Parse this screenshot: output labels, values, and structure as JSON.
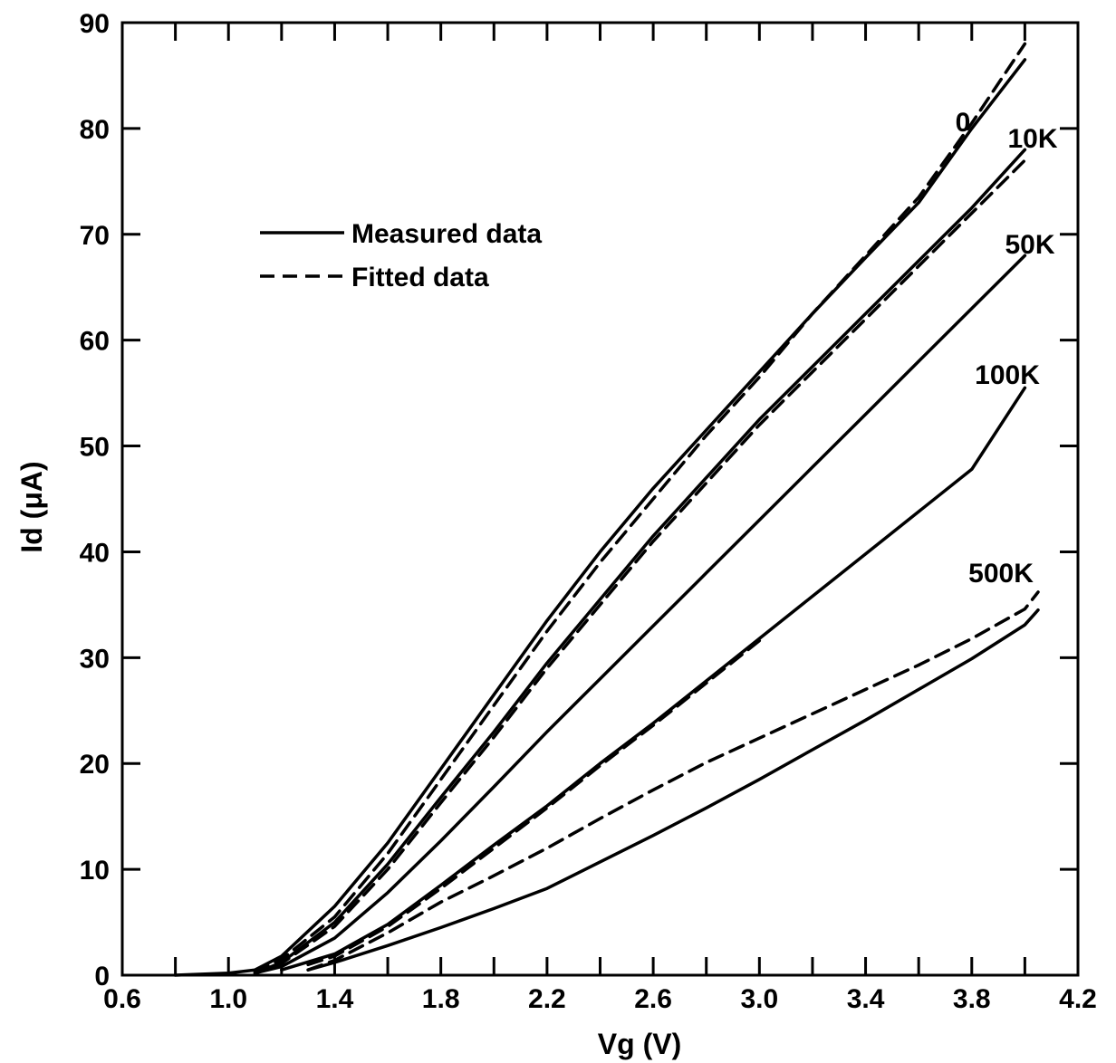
{
  "chart_data": {
    "type": "line",
    "xlabel": "Vg (V)",
    "ylabel": "Id (μA)",
    "xlim": [
      0.6,
      4.2
    ],
    "ylim": [
      0,
      90
    ],
    "x_ticks": [
      "0.6",
      "1.0",
      "1.4",
      "1.8",
      "2.2",
      "2.6",
      "3.0",
      "3.4",
      "3.8",
      "4.2"
    ],
    "y_ticks": [
      "0",
      "10",
      "20",
      "30",
      "40",
      "50",
      "60",
      "70",
      "80",
      "90"
    ],
    "grid": false,
    "legend": {
      "placement": "upper-left",
      "entries": [
        {
          "label": "Measured data",
          "style": "solid"
        },
        {
          "label": "Fitted data",
          "style": "dashed"
        }
      ]
    },
    "series_labels": [
      "0",
      "10K",
      "50K",
      "100K",
      "500K"
    ],
    "series": [
      {
        "label": "0",
        "kind": "measured",
        "style": "solid",
        "x": [
          0.8,
          1.0,
          1.1,
          1.2,
          1.4,
          1.6,
          1.8,
          2.0,
          2.2,
          2.4,
          2.6,
          2.8,
          3.0,
          3.2,
          3.4,
          3.6,
          3.8,
          4.0
        ],
        "y": [
          0,
          0.2,
          0.5,
          1.8,
          6.5,
          12.5,
          19.5,
          26.5,
          33.5,
          40,
          46,
          51.5,
          57,
          62.5,
          67.8,
          73,
          80,
          86.5
        ]
      },
      {
        "label": "0",
        "kind": "fitted",
        "style": "dashed",
        "x": [
          1.1,
          1.2,
          1.4,
          1.6,
          1.8,
          2.0,
          2.2,
          2.4,
          2.6,
          2.8,
          3.0,
          3.2,
          3.4,
          3.6,
          3.8,
          4.0
        ],
        "y": [
          0.3,
          1.5,
          5.5,
          11.5,
          18.5,
          25.5,
          32.5,
          39,
          45,
          51,
          56.5,
          62.5,
          68,
          73.5,
          80.5,
          88
        ]
      },
      {
        "label": "10K",
        "kind": "measured",
        "style": "solid",
        "x": [
          1.1,
          1.2,
          1.4,
          1.6,
          1.8,
          2.0,
          2.2,
          2.4,
          2.6,
          2.8,
          3.0,
          3.2,
          3.4,
          3.6,
          3.8,
          4.0
        ],
        "y": [
          0.2,
          1.2,
          5,
          10.5,
          16.8,
          23,
          29.5,
          35.5,
          41.5,
          47,
          52.5,
          57.5,
          62.5,
          67.5,
          72.5,
          78
        ]
      },
      {
        "label": "10K",
        "kind": "fitted",
        "style": "dashed",
        "x": [
          1.1,
          1.2,
          1.4,
          1.6,
          1.8,
          2.0,
          2.2,
          2.4,
          2.6,
          2.8,
          3.0,
          3.2,
          3.4,
          3.6,
          3.8,
          4.0
        ],
        "y": [
          0.2,
          1.1,
          4.6,
          10,
          16.3,
          22.5,
          29,
          35,
          41,
          46.5,
          52,
          57,
          62,
          67,
          72,
          77
        ]
      },
      {
        "label": "50K",
        "kind": "measured",
        "style": "solid",
        "x": [
          1.1,
          1.2,
          1.4,
          1.6,
          1.8,
          2.0,
          2.2,
          2.4,
          2.6,
          2.8,
          3.0,
          3.2,
          3.4,
          3.6,
          3.8,
          4.0
        ],
        "y": [
          0.2,
          0.8,
          3.5,
          7.8,
          12.7,
          17.8,
          23,
          28,
          33,
          38,
          43,
          48,
          53,
          58,
          63,
          68
        ]
      },
      {
        "label": "100K",
        "kind": "measured",
        "style": "solid",
        "x": [
          1.2,
          1.4,
          1.6,
          1.8,
          2.0,
          2.2,
          2.4,
          2.6,
          2.8,
          3.0,
          3.2,
          3.4,
          3.6,
          3.8,
          4.0
        ],
        "y": [
          0.5,
          2,
          4.8,
          8.5,
          12.3,
          16,
          20,
          23.8,
          27.8,
          31.8,
          35.8,
          39.8,
          43.8,
          47.8,
          55.5
        ]
      },
      {
        "label": "100K",
        "kind": "fitted",
        "style": "dashed",
        "x": [
          1.3,
          1.4,
          1.6,
          1.8,
          2.0,
          2.2,
          2.4,
          2.6,
          2.8,
          3.0
        ],
        "y": [
          1,
          1.8,
          4.6,
          8.2,
          12,
          15.8,
          19.8,
          23.6,
          27.6,
          31.6
        ]
      },
      {
        "label": "500K",
        "kind": "measured",
        "style": "solid",
        "x": [
          1.3,
          1.4,
          1.6,
          1.8,
          2.0,
          2.2,
          2.4,
          2.6,
          2.8,
          3.0,
          3.2,
          3.4,
          3.6,
          3.8,
          4.0,
          4.05
        ],
        "y": [
          0.5,
          1.2,
          2.8,
          4.5,
          6.3,
          8.2,
          10.7,
          13.2,
          15.8,
          18.5,
          21.3,
          24.1,
          27,
          29.9,
          33.1,
          34.5
        ]
      },
      {
        "label": "500K",
        "kind": "fitted",
        "style": "dashed",
        "x": [
          1.3,
          1.4,
          1.6,
          1.8,
          2.0,
          2.2,
          2.4,
          2.6,
          2.8,
          3.0,
          3.2,
          3.4,
          3.6,
          3.8,
          4.0,
          4.05
        ],
        "y": [
          0.5,
          1.4,
          4,
          6.9,
          9.4,
          12,
          14.8,
          17.5,
          20.1,
          22.4,
          24.7,
          27,
          29.3,
          31.8,
          34.6,
          36.2
        ]
      }
    ]
  }
}
